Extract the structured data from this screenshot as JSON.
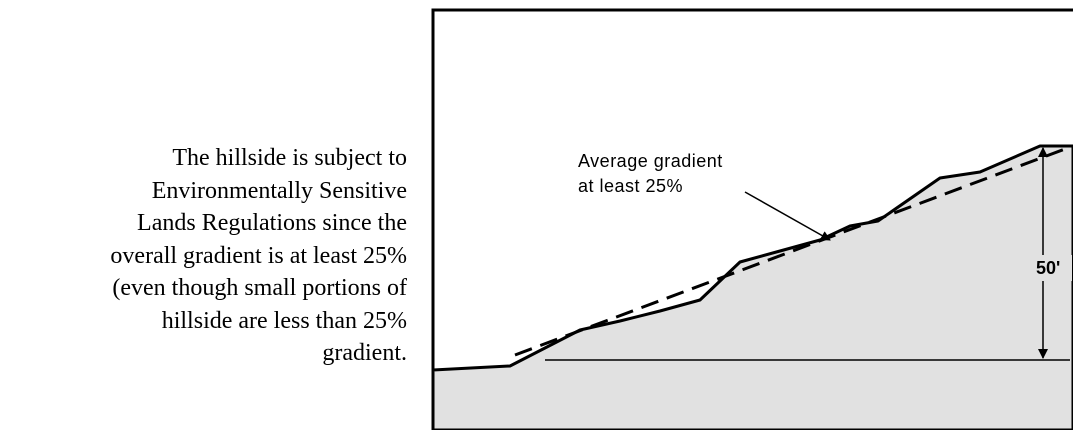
{
  "text": {
    "lines": [
      "The hillside is subject to",
      "Environmentally Sensitive",
      "Lands Regulations since the",
      "overall gradient is at least 25%",
      "(even though small portions of",
      "hillside are less than 25%",
      "gradient."
    ]
  },
  "diagram": {
    "label_lines": [
      "Average gradient",
      "at least 25%"
    ],
    "height_label": "50'"
  }
}
